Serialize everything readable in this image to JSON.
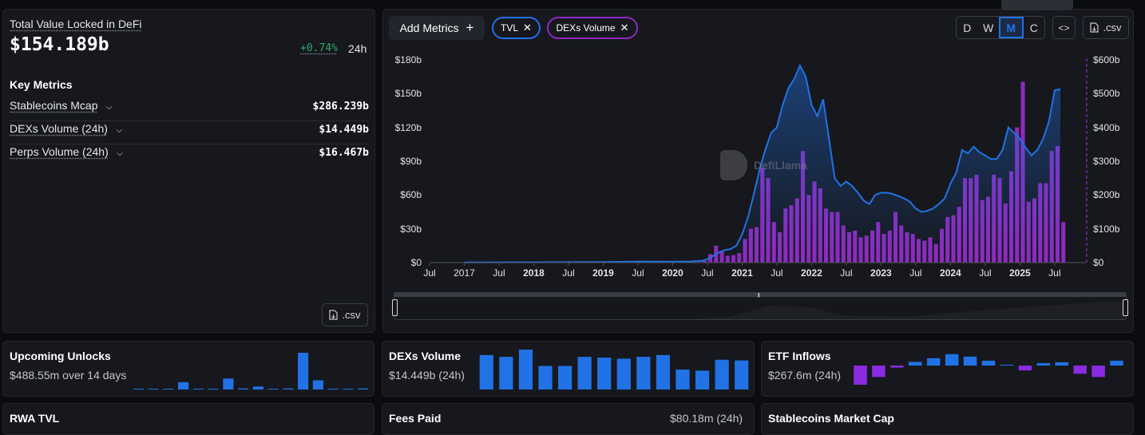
{
  "tvl_panel": {
    "title": "Total Value Locked in DeFi",
    "value": "$154.189b",
    "change": "+0.74%",
    "change_period": "24h",
    "key_metrics_heading": "Key Metrics",
    "metrics": [
      {
        "label": "Stablecoins Mcap",
        "value": "$286.239b"
      },
      {
        "label": "DEXs Volume (24h)",
        "value": "$14.449b"
      },
      {
        "label": "Perps Volume (24h)",
        "value": "$16.467b"
      }
    ],
    "csv_label": ".csv"
  },
  "chart_toolbar": {
    "add_metrics_label": "Add Metrics",
    "add_icon": "plus-icon",
    "chips": [
      {
        "label": "TVL",
        "color": "#2172e5"
      },
      {
        "label": "DEXs Volume",
        "color": "#8c2bbd"
      }
    ],
    "periods": [
      "D",
      "W",
      "M",
      "C"
    ],
    "active_period": "M",
    "embed_icon": "code-icon",
    "csv_label": ".csv"
  },
  "watermark": "DefiLlama",
  "chart_data": {
    "type": "line",
    "x_ticks": [
      "Jul",
      "2017",
      "Jul",
      "2018",
      "Jul",
      "2019",
      "Jul",
      "2020",
      "Jul",
      "2021",
      "Jul",
      "2022",
      "Jul",
      "2023",
      "Jul",
      "2024",
      "Jul",
      "2025",
      "Jul"
    ],
    "bold_x_ticks": [
      "2018",
      "2019",
      "2020",
      "2021",
      "2022",
      "2023",
      "2024",
      "2025"
    ],
    "y_left_ticks": [
      "$0",
      "$30b",
      "$60b",
      "$90b",
      "$120b",
      "$150b",
      "$180b"
    ],
    "y_right_ticks": [
      "$0",
      "$100b",
      "$200b",
      "$300b",
      "$400b",
      "$500b",
      "$600b"
    ],
    "ylim_left": [
      0,
      180
    ],
    "ylim_right": [
      0,
      600
    ],
    "grid": false,
    "series": [
      {
        "name": "TVL",
        "type": "area",
        "axis": "left",
        "color": "#2172e5",
        "x": [
          "2018-01",
          "2018-07",
          "2019-01",
          "2019-07",
          "2020-01",
          "2020-04",
          "2020-06",
          "2020-07",
          "2020-08",
          "2020-09",
          "2020-10",
          "2020-11",
          "2020-12",
          "2021-01",
          "2021-02",
          "2021-03",
          "2021-04",
          "2021-05",
          "2021-06",
          "2021-07",
          "2021-08",
          "2021-09",
          "2021-10",
          "2021-11",
          "2021-12",
          "2022-01",
          "2022-02",
          "2022-03",
          "2022-04",
          "2022-05",
          "2022-06",
          "2022-07",
          "2022-08",
          "2022-09",
          "2022-10",
          "2022-11",
          "2022-12",
          "2023-01",
          "2023-02",
          "2023-03",
          "2023-04",
          "2023-05",
          "2023-06",
          "2023-07",
          "2023-08",
          "2023-09",
          "2023-10",
          "2023-11",
          "2023-12",
          "2024-01",
          "2024-02",
          "2024-03",
          "2024-04",
          "2024-05",
          "2024-06",
          "2024-07",
          "2024-08",
          "2024-09",
          "2024-10",
          "2024-11",
          "2024-12",
          "2025-01",
          "2025-02",
          "2025-03",
          "2025-04",
          "2025-05",
          "2025-06",
          "2025-07",
          "2025-08"
        ],
        "y": [
          0.3,
          0.4,
          0.6,
          0.9,
          0.8,
          1.0,
          1.5,
          3,
          6,
          9,
          11,
          12,
          15,
          25,
          40,
          60,
          82,
          100,
          115,
          120,
          140,
          155,
          163,
          175,
          165,
          140,
          130,
          145,
          110,
          75,
          68,
          72,
          68,
          62,
          55,
          52,
          60,
          62,
          62,
          61,
          59,
          57,
          54,
          48,
          45,
          46,
          48,
          52,
          57,
          70,
          80,
          100,
          97,
          103,
          98,
          95,
          92,
          92,
          100,
          120,
          115,
          110,
          102,
          95,
          100,
          110,
          125,
          153,
          154
        ]
      },
      {
        "name": "DEXs Volume",
        "type": "bar",
        "axis": "right",
        "color": "#8c2bbd",
        "x": [
          "2020-06",
          "2020-07",
          "2020-08",
          "2020-09",
          "2020-10",
          "2020-11",
          "2020-12",
          "2021-01",
          "2021-02",
          "2021-03",
          "2021-04",
          "2021-05",
          "2021-06",
          "2021-07",
          "2021-08",
          "2021-09",
          "2021-10",
          "2021-11",
          "2021-12",
          "2022-01",
          "2022-02",
          "2022-03",
          "2022-04",
          "2022-05",
          "2022-06",
          "2022-07",
          "2022-08",
          "2022-09",
          "2022-10",
          "2022-11",
          "2022-12",
          "2023-01",
          "2023-02",
          "2023-03",
          "2023-04",
          "2023-05",
          "2023-06",
          "2023-07",
          "2023-08",
          "2023-09",
          "2023-10",
          "2023-11",
          "2023-12",
          "2024-01",
          "2024-02",
          "2024-03",
          "2024-04",
          "2024-05",
          "2024-06",
          "2024-07",
          "2024-08",
          "2024-09",
          "2024-10",
          "2024-11",
          "2024-12",
          "2025-01",
          "2025-02",
          "2025-03",
          "2025-04",
          "2025-05",
          "2025-06",
          "2025-07",
          "2025-08"
        ],
        "y": [
          5,
          25,
          50,
          35,
          20,
          22,
          28,
          70,
          100,
          105,
          280,
          250,
          120,
          90,
          160,
          170,
          190,
          330,
          200,
          240,
          220,
          160,
          150,
          150,
          110,
          90,
          95,
          75,
          80,
          95,
          120,
          85,
          95,
          150,
          110,
          90,
          85,
          70,
          65,
          75,
          55,
          100,
          135,
          140,
          165,
          250,
          250,
          260,
          185,
          195,
          260,
          250,
          175,
          270,
          400,
          535,
          180,
          190,
          235,
          235,
          330,
          345,
          120
        ]
      }
    ]
  },
  "range_brush": {
    "handle_icon": "grip-icon"
  },
  "small_cards": [
    {
      "title": "Upcoming Unlocks",
      "value": "$488.55m over 14 days"
    },
    {
      "title": "DEXs Volume",
      "value": "$14.449b (24h)"
    },
    {
      "title": "ETF Inflows",
      "value": "$267.6m (24h)"
    },
    {
      "title": "RWA TVL",
      "value": ""
    },
    {
      "title": "Fees Paid",
      "value": "$80.18m (24h)"
    },
    {
      "title": "Stablecoins Market Cap",
      "value": ""
    }
  ],
  "unlocks_bars": [
    0,
    0,
    0,
    2,
    0,
    0,
    3,
    0.3,
    0.8,
    0,
    0.3,
    10,
    2.5,
    0.2,
    0.2,
    0.3
  ],
  "dex_volume_bars": [
    9.5,
    9,
    11,
    6.5,
    6.5,
    9,
    8.8,
    8.5,
    9,
    9.5,
    5.5,
    5.2,
    8.2,
    8
  ],
  "etf_flows": [
    -235,
    -140,
    -25,
    45,
    90,
    140,
    110,
    60,
    10,
    -60,
    30,
    40,
    -100,
    -140,
    60
  ]
}
